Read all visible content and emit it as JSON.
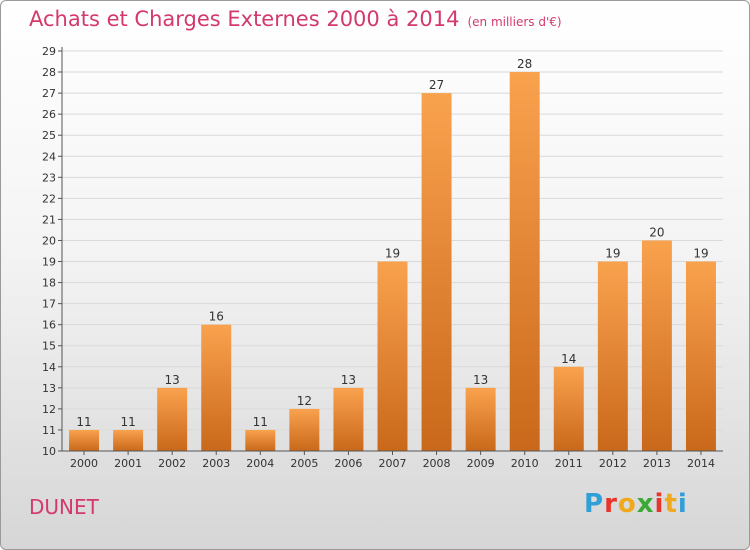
{
  "chart_data": {
    "type": "bar",
    "title": "Achats et Charges Externes 2000 à 2014",
    "unit": "(en milliers d'€)",
    "xlabel": "",
    "ylabel": "",
    "ylim": [
      10,
      29
    ],
    "yticks": [
      10,
      11,
      12,
      13,
      14,
      15,
      16,
      17,
      18,
      19,
      20,
      21,
      22,
      23,
      24,
      25,
      26,
      27,
      28,
      29
    ],
    "categories": [
      "2000",
      "2001",
      "2002",
      "2003",
      "2004",
      "2005",
      "2006",
      "2007",
      "2008",
      "2009",
      "2010",
      "2011",
      "2012",
      "2013",
      "2014"
    ],
    "values": [
      11,
      11,
      13,
      16,
      11,
      12,
      13,
      19,
      27,
      13,
      28,
      14,
      19,
      20,
      19
    ],
    "grid": true,
    "legend": "none"
  },
  "commune": "DUNET",
  "logo": {
    "text": "Proxiti",
    "letters": [
      "P",
      "r",
      "o",
      "x",
      "i",
      "t",
      "i"
    ]
  },
  "colors": {
    "title": "#d33a6b",
    "bar_light": "#f9a24e",
    "bar_dark": "#c9681a",
    "logo": [
      "#2f9fd8",
      "#e8342a",
      "#f0a91c",
      "#3aa935",
      "#e8342a",
      "#f0a91c",
      "#2f9fd8"
    ]
  }
}
